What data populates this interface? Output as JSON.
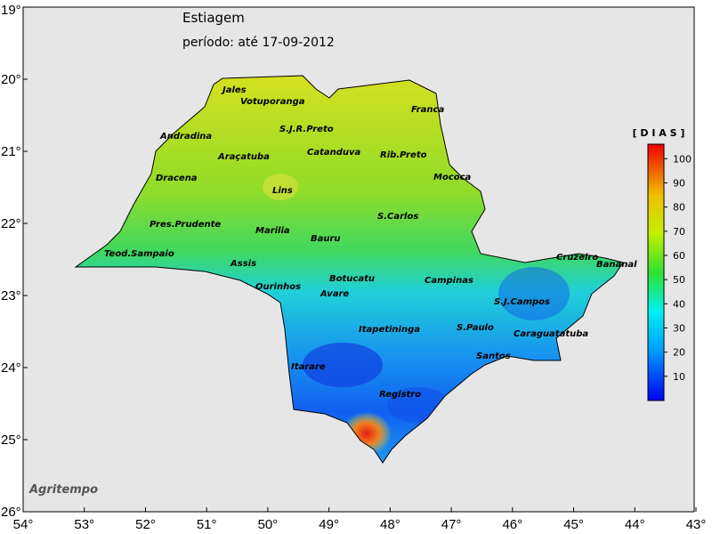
{
  "map": {
    "title": "Estiagem",
    "subtitle": "período: até 17-09-2012",
    "credit": "Agritempo",
    "lon_range": [
      -54,
      -43
    ],
    "lat_range": [
      -26,
      -19
    ],
    "lon_ticks": [
      {
        "value": -54,
        "label": "54°"
      },
      {
        "value": -53,
        "label": "53°"
      },
      {
        "value": -52,
        "label": "52°"
      },
      {
        "value": -51,
        "label": "51°"
      },
      {
        "value": -50,
        "label": "50°"
      },
      {
        "value": -49,
        "label": "49°"
      },
      {
        "value": -48,
        "label": "48°"
      },
      {
        "value": -47,
        "label": "47°"
      },
      {
        "value": -46,
        "label": "46°"
      },
      {
        "value": -45,
        "label": "45°"
      },
      {
        "value": -44,
        "label": "44°"
      },
      {
        "value": -43,
        "label": "43°"
      }
    ],
    "lat_ticks": [
      {
        "value": -19,
        "label": "19°"
      },
      {
        "value": -20,
        "label": "20°"
      },
      {
        "value": -21,
        "label": "21°"
      },
      {
        "value": -22,
        "label": "22°"
      },
      {
        "value": -23,
        "label": "23°"
      },
      {
        "value": -24,
        "label": "24°"
      },
      {
        "value": -25,
        "label": "25°"
      },
      {
        "value": -26,
        "label": "26°"
      }
    ],
    "colorbar": {
      "title": "[ D I A S ]",
      "range": [
        0,
        106
      ],
      "ticks": [
        10,
        20,
        30,
        40,
        50,
        60,
        70,
        80,
        90,
        100
      ]
    },
    "cities": [
      "Jales",
      "Votuporanga",
      "Franca",
      "S.J.R.Preto",
      "Andradina",
      "Catanduva",
      "Rib.Preto",
      "Araçatuba",
      "Dracena",
      "Mococa",
      "Lins",
      "S.Carlos",
      "Pres.Prudente",
      "Marilia",
      "Bauru",
      "Teod.Sampaio",
      "Assis",
      "Cruzeiro",
      "Bananal",
      "Botucatu",
      "Campinas",
      "Ourinhos",
      "Avare",
      "S.J.Campos",
      "S.Paulo",
      "Itapetininga",
      "Caraguatatuba",
      "Santos",
      "Itarare",
      "Registro"
    ]
  }
}
